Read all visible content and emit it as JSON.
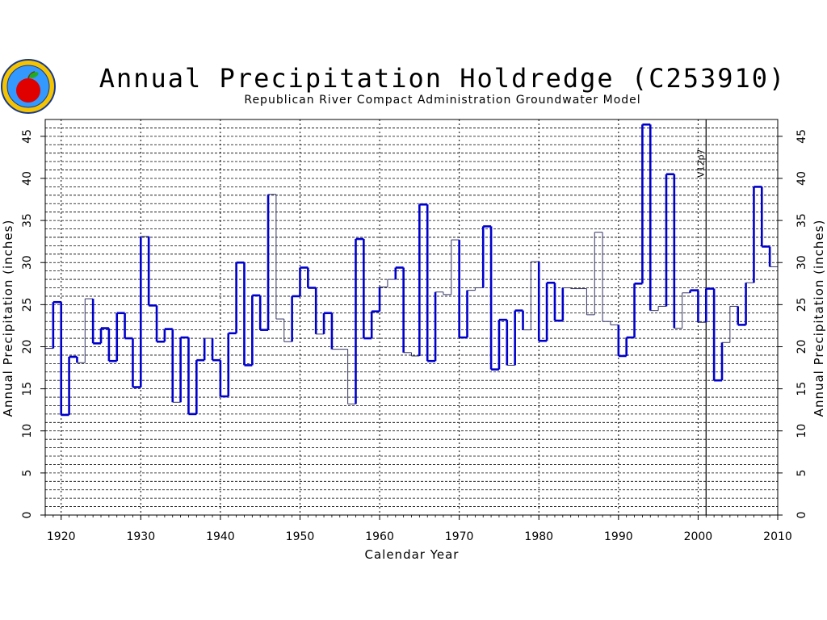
{
  "header": {
    "title": "Annual Precipitation Holdredge (C253910)",
    "subtitle": "Republican River Compact Administration Groundwater Model",
    "logo_icon": "apple-seal-logo"
  },
  "chart_data": {
    "type": "line",
    "step": true,
    "title": "Annual Precipitation Holdredge (C253910)",
    "subtitle": "Republican River Compact Administration Groundwater Model",
    "xlabel": "Calendar Year",
    "ylabel": "Annual Precipitation (inches)",
    "xlim": [
      1918,
      2010
    ],
    "ylim": [
      0,
      47
    ],
    "x_ticks": [
      1920,
      1930,
      1940,
      1950,
      1960,
      1970,
      1980,
      1990,
      2000,
      2010
    ],
    "y_ticks": [
      0,
      5,
      10,
      15,
      20,
      25,
      30,
      35,
      40,
      45
    ],
    "grid": true,
    "series": [
      {
        "color": "#0000cc",
        "x": [
          1918,
          1919,
          1920,
          1921,
          1922,
          1923,
          1924,
          1925,
          1926,
          1927,
          1928,
          1929,
          1930,
          1931,
          1932,
          1933,
          1934,
          1935,
          1936,
          1937,
          1938,
          1939,
          1940,
          1941,
          1942,
          1943,
          1944,
          1945,
          1946,
          1947,
          1948,
          1949,
          1950,
          1951,
          1952,
          1953,
          1954,
          1955,
          1956,
          1957,
          1958,
          1959,
          1960,
          1961,
          1962,
          1963,
          1964,
          1965,
          1966,
          1967,
          1968,
          1969,
          1970,
          1971,
          1972,
          1973,
          1974,
          1975,
          1976,
          1977,
          1978,
          1979,
          1980,
          1981,
          1982,
          1983,
          1984,
          1985,
          1986,
          1987,
          1988,
          1989,
          1990,
          1991,
          1992,
          1993,
          1994,
          1995,
          1996,
          1997,
          1998,
          1999,
          2000,
          2001,
          2002,
          2003,
          2004,
          2005,
          2006,
          2007,
          2008,
          2009
        ],
        "values": [
          19.8,
          25.3,
          11.9,
          18.8,
          18.1,
          25.7,
          20.4,
          22.2,
          18.3,
          24.0,
          21.0,
          15.2,
          33.1,
          24.9,
          20.6,
          22.1,
          13.4,
          21.1,
          12.0,
          18.4,
          21.0,
          18.4,
          14.1,
          21.6,
          30.0,
          17.8,
          26.1,
          22.0,
          38.1,
          23.3,
          20.6,
          26.0,
          29.4,
          27.0,
          21.5,
          24.0,
          19.7,
          19.7,
          13.2,
          32.8,
          21.0,
          24.2,
          27.1,
          28.0,
          29.4,
          19.3,
          18.9,
          36.9,
          18.3,
          26.5,
          26.2,
          32.7,
          21.1,
          26.7,
          27.0,
          34.3,
          17.3,
          23.2,
          17.8,
          24.3,
          22.0,
          30.1,
          20.7,
          27.6,
          23.1,
          27.0,
          26.9,
          26.9,
          23.8,
          33.6,
          23.0,
          22.6,
          18.9,
          21.1,
          27.5,
          46.4,
          24.3,
          24.8,
          40.5,
          22.2,
          26.4,
          26.7,
          22.9,
          26.9,
          16.0,
          20.5,
          24.8,
          22.6,
          27.6,
          39.0,
          31.9,
          29.5
        ],
        "thin_years": [
          1918,
          1922,
          1923,
          1930,
          1934,
          1938,
          1946,
          1947,
          1948,
          1952,
          1954,
          1955,
          1956,
          1960,
          1961,
          1963,
          1964,
          1967,
          1968,
          1969,
          1971,
          1972,
          1976,
          1978,
          1979,
          1983,
          1984,
          1985,
          1986,
          1987,
          1988,
          1989,
          1994,
          1995,
          1997,
          1998,
          2000,
          2003,
          2004,
          2006,
          2009
        ],
        "markers": [
          {
            "x": 2001,
            "label": "V12p7"
          }
        ]
      }
    ]
  }
}
